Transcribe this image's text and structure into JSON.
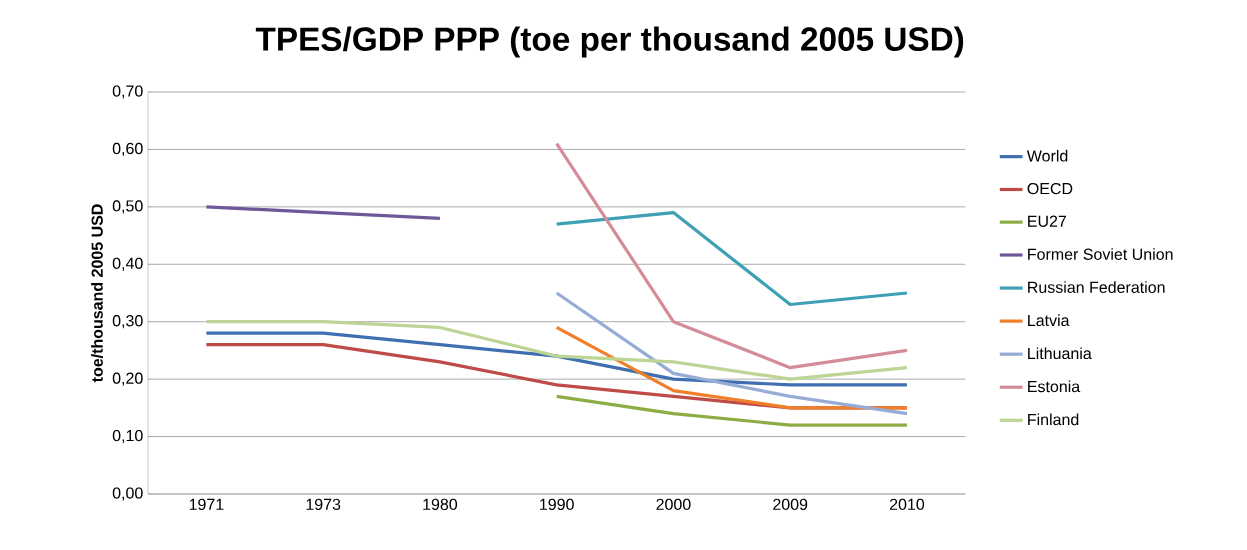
{
  "chart_data": {
    "type": "line",
    "title": "TPES/GDP PPP (toe per thousand 2005 USD)",
    "ylabel": "toe/thousand 2005 USD",
    "categories": [
      "1971",
      "1973",
      "1980",
      "1990",
      "2000",
      "2009",
      "2010"
    ],
    "series": [
      {
        "name": "World",
        "color": "#3f6fb0",
        "values": [
          0.28,
          0.28,
          0.26,
          0.24,
          0.2,
          0.19,
          0.19
        ]
      },
      {
        "name": "OECD",
        "color": "#be4b48",
        "values": [
          0.26,
          0.26,
          0.23,
          0.19,
          0.17,
          0.15,
          0.15
        ]
      },
      {
        "name": "EU27",
        "color": "#8cac44",
        "values": [
          null,
          null,
          null,
          0.17,
          0.14,
          0.12,
          0.12
        ]
      },
      {
        "name": "Former Soviet Union",
        "color": "#6e5899",
        "values": [
          0.5,
          0.49,
          0.48,
          null,
          null,
          null,
          null
        ]
      },
      {
        "name": "Russian Federation",
        "color": "#3ea0b5",
        "values": [
          null,
          null,
          null,
          0.47,
          0.49,
          0.33,
          0.35
        ]
      },
      {
        "name": "Latvia",
        "color": "#f07f2a",
        "values": [
          null,
          null,
          null,
          0.29,
          0.18,
          0.15,
          0.15
        ]
      },
      {
        "name": "Lithuania",
        "color": "#95acd6",
        "values": [
          null,
          null,
          null,
          0.35,
          0.21,
          0.17,
          0.14
        ]
      },
      {
        "name": "Estonia",
        "color": "#d48c98",
        "values": [
          null,
          null,
          null,
          0.61,
          0.3,
          0.22,
          0.25
        ]
      },
      {
        "name": "Finland",
        "color": "#bcd494",
        "values": [
          0.3,
          0.3,
          0.29,
          0.24,
          0.23,
          0.2,
          0.22
        ]
      }
    ],
    "ylim": [
      0,
      0.7
    ],
    "yticks": [
      {
        "value": 0,
        "label": "0,00"
      },
      {
        "value": 0.1,
        "label": "0,10"
      },
      {
        "value": 0.2,
        "label": "0,20"
      },
      {
        "value": 0.3,
        "label": "0,30"
      },
      {
        "value": 0.4,
        "label": "0,40"
      },
      {
        "value": 0.5,
        "label": "0,50"
      },
      {
        "value": 0.6,
        "label": "0,60"
      },
      {
        "value": 0.7,
        "label": "0,70"
      }
    ],
    "grid": "y",
    "legend": "right",
    "marker": "none",
    "line_style": "solid"
  }
}
